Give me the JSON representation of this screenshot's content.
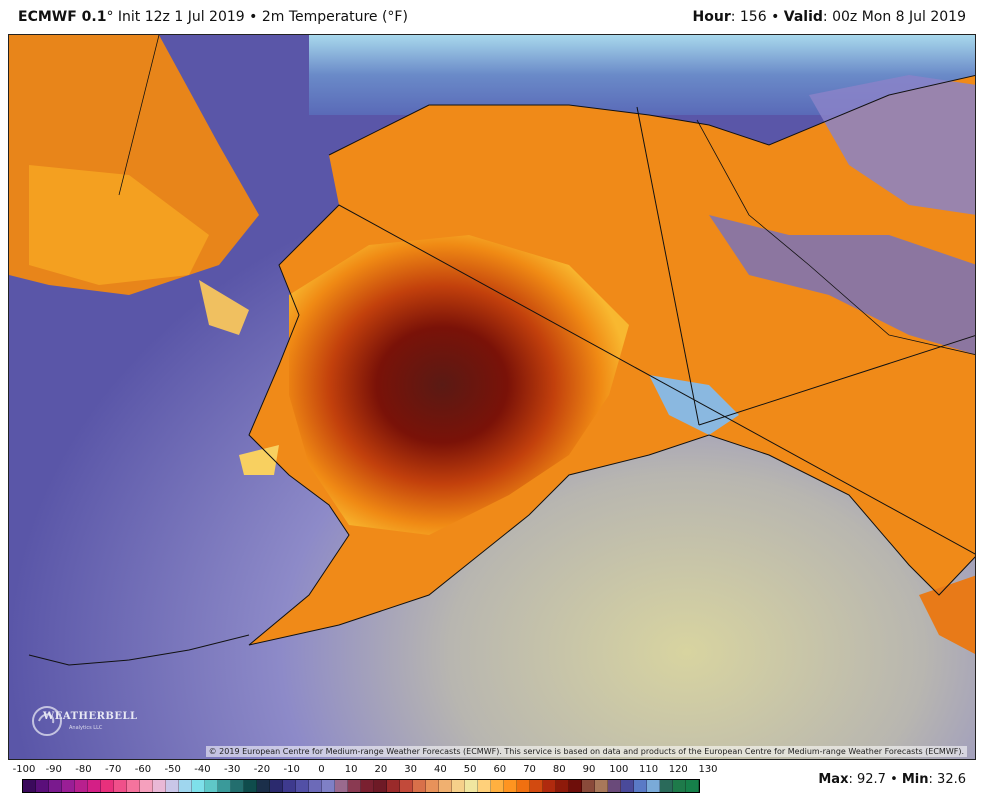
{
  "header": {
    "model": "ECMWF 0.1",
    "degree": "°",
    "init": " Init 12z 1 Jul 2019 • 2m Temperature (°F)",
    "hour_label": "Hour",
    "hour_value": ": 156 • ",
    "valid_label": "Valid",
    "valid_value": ": 00z Mon 8 Jul 2019"
  },
  "map": {
    "copyright": "© 2019 European Centre for Medium-range Weather Forecasts (ECMWF). This service is based on data and products of the European Centre for Medium-range Weather Forecasts (ECMWF).",
    "logo_text": "WEATHERBELL",
    "logo_sub": "Analytics LLC"
  },
  "legend": {
    "ticks": [
      "-100",
      "-90",
      "-80",
      "-70",
      "-60",
      "-50",
      "-40",
      "-30",
      "-20",
      "-10",
      "0",
      "10",
      "20",
      "30",
      "40",
      "50",
      "60",
      "70",
      "80",
      "90",
      "100",
      "110",
      "120",
      "130"
    ],
    "colors": [
      "#3b0a5c",
      "#5a0f7a",
      "#7a1a8e",
      "#9a1e96",
      "#b8208e",
      "#d41f86",
      "#e8307c",
      "#f0508a",
      "#f5739d",
      "#f5a0bd",
      "#e9b8d6",
      "#c9c6e8",
      "#9fd6ee",
      "#7ee0ea",
      "#5fc8c8",
      "#3a9a9a",
      "#236e6e",
      "#0f4c4c",
      "#1b2f4a",
      "#2b2a6e",
      "#3e3a8e",
      "#5250a6",
      "#6c6ab8",
      "#7f80c6",
      "#9a6a8e",
      "#8a3a52",
      "#7a2030",
      "#6e1a26",
      "#9a2a2a",
      "#c24a3a",
      "#d8704a",
      "#e8925a",
      "#f0b070",
      "#f6d08a",
      "#f0e6a0",
      "#ffd07a",
      "#ffb040",
      "#ff9420",
      "#f07010",
      "#d24a10",
      "#b02a0e",
      "#8e1a0a",
      "#6e0e0a",
      "#8a4a3a",
      "#a8785a",
      "#6a4a7a",
      "#4a4a9a",
      "#5a7ac6",
      "#7aaad8",
      "#2a6a5a",
      "#1e7a4a",
      "#16804a"
    ],
    "max_label": "Max",
    "max_value": ": 92.7 • ",
    "min_label": "Min",
    "min_value": ": 32.6"
  }
}
